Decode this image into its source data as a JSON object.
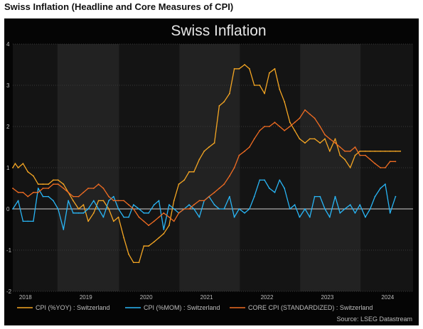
{
  "page": {
    "heading": "Swiss Inflation (Headline and Core Measures of CPI)"
  },
  "chart_data": {
    "type": "line",
    "title": "Swiss Inflation",
    "source": "Source: LSEG Datastream",
    "xlim": [
      2017.79,
      2024.42
    ],
    "ylim": [
      -2,
      4
    ],
    "yticks": [
      -2,
      -1,
      0,
      1,
      2,
      3,
      4
    ],
    "xtick_labels": [
      {
        "label": "2018",
        "x": 2018.0
      },
      {
        "label": "2019",
        "x": 2019.0
      },
      {
        "label": "2020",
        "x": 2020.0
      },
      {
        "label": "2021",
        "x": 2021.0
      },
      {
        "label": "2022",
        "x": 2022.0
      },
      {
        "label": "2023",
        "x": 2023.0
      },
      {
        "label": "2024",
        "x": 2024.0
      }
    ],
    "shaded_bands": [
      [
        2017.79,
        2018.53
      ],
      [
        2019.55,
        2020.55
      ],
      [
        2021.55,
        2022.55
      ],
      [
        2023.55,
        2024.42
      ]
    ],
    "zero_line": 0,
    "colors": {
      "cpi_yoy": "#f5a623",
      "cpi_mom": "#29b6f6",
      "core_cpi": "#ef6c22",
      "panel_bg": "#050505",
      "band_light": "#222222",
      "band_dark": "#141414",
      "grid": "#3a3a3a",
      "text": "#bdbdbd",
      "title": "#e6e6e6"
    },
    "series": [
      {
        "key": "cpi_yoy",
        "name": "CPI (%YOY) : Switzerland",
        "color": "#f5a623",
        "x": [
          2017.79,
          2017.83,
          2017.88,
          2017.96,
          2018.04,
          2018.13,
          2018.21,
          2018.29,
          2018.38,
          2018.46,
          2018.54,
          2018.63,
          2018.71,
          2018.79,
          2018.88,
          2018.96,
          2019.04,
          2019.13,
          2019.21,
          2019.29,
          2019.38,
          2019.46,
          2019.54,
          2019.63,
          2019.71,
          2019.79,
          2019.88,
          2019.96,
          2020.04,
          2020.13,
          2020.21,
          2020.29,
          2020.38,
          2020.46,
          2020.54,
          2020.63,
          2020.71,
          2020.79,
          2020.88,
          2020.96,
          2021.04,
          2021.13,
          2021.21,
          2021.29,
          2021.38,
          2021.46,
          2021.54,
          2021.63,
          2021.71,
          2021.79,
          2021.88,
          2021.96,
          2022.04,
          2022.13,
          2022.21,
          2022.29,
          2022.38,
          2022.46,
          2022.54,
          2022.63,
          2022.71,
          2022.79,
          2022.88,
          2022.96,
          2023.04,
          2023.13,
          2023.21,
          2023.29,
          2023.38,
          2023.46,
          2023.54,
          2023.63,
          2023.71,
          2023.79,
          2023.88,
          2023.96,
          2024.04,
          2024.13,
          2024.21
        ],
        "values": [
          1.0,
          1.1,
          1.0,
          1.1,
          0.9,
          0.8,
          0.6,
          0.6,
          0.6,
          0.7,
          0.7,
          0.6,
          0.4,
          0.2,
          0.0,
          0.1,
          -0.3,
          -0.1,
          0.2,
          0.2,
          0.0,
          -0.3,
          -0.2,
          -0.7,
          -1.1,
          -1.3,
          -1.3,
          -0.9,
          -0.9,
          -0.8,
          -0.7,
          -0.6,
          -0.4,
          0.2,
          0.6,
          0.7,
          0.9,
          0.9,
          1.2,
          1.4,
          1.5,
          1.6,
          2.5,
          2.6,
          2.8,
          3.4,
          3.4,
          3.5,
          3.4,
          3.0,
          3.0,
          2.8,
          3.3,
          3.4,
          2.9,
          2.6,
          2.1,
          1.9,
          1.7,
          1.6,
          1.7,
          1.7,
          1.6,
          1.7,
          1.4,
          1.7,
          1.3,
          1.2,
          1.0,
          1.3,
          1.4,
          1.4,
          1.4,
          1.4,
          1.4,
          1.4,
          1.4,
          1.4,
          1.4
        ]
      },
      {
        "key": "cpi_mom",
        "name": "CPI (%MOM) : Switzerland",
        "color": "#29b6f6",
        "x": [
          2017.79,
          2017.88,
          2017.96,
          2018.04,
          2018.13,
          2018.21,
          2018.29,
          2018.38,
          2018.46,
          2018.54,
          2018.63,
          2018.71,
          2018.79,
          2018.88,
          2018.96,
          2019.04,
          2019.13,
          2019.21,
          2019.29,
          2019.38,
          2019.46,
          2019.54,
          2019.63,
          2019.71,
          2019.79,
          2019.88,
          2019.96,
          2020.04,
          2020.13,
          2020.21,
          2020.29,
          2020.38,
          2020.46,
          2020.54,
          2020.63,
          2020.71,
          2020.79,
          2020.88,
          2020.96,
          2021.04,
          2021.13,
          2021.21,
          2021.29,
          2021.38,
          2021.46,
          2021.54,
          2021.63,
          2021.71,
          2021.79,
          2021.88,
          2021.96,
          2022.04,
          2022.13,
          2022.21,
          2022.29,
          2022.38,
          2022.46,
          2022.54,
          2022.63,
          2022.71,
          2022.79,
          2022.88,
          2022.96,
          2023.04,
          2023.13,
          2023.21,
          2023.29,
          2023.38,
          2023.46,
          2023.54,
          2023.63,
          2023.71,
          2023.79,
          2023.88,
          2023.96,
          2024.04,
          2024.13
        ],
        "values": [
          0.0,
          0.2,
          -0.3,
          -0.3,
          -0.3,
          0.5,
          0.3,
          0.3,
          0.2,
          0.0,
          -0.5,
          0.2,
          -0.1,
          -0.1,
          -0.1,
          0.0,
          0.2,
          0.0,
          -0.2,
          0.2,
          0.3,
          0.0,
          -0.2,
          -0.2,
          0.1,
          0.0,
          -0.1,
          -0.1,
          0.1,
          0.2,
          -0.5,
          0.1,
          0.0,
          -0.1,
          0.0,
          0.1,
          0.0,
          -0.2,
          0.2,
          0.3,
          0.1,
          0.0,
          0.0,
          0.3,
          -0.2,
          0.0,
          -0.1,
          0.0,
          0.3,
          0.7,
          0.7,
          0.5,
          0.4,
          0.7,
          0.5,
          0.0,
          0.1,
          -0.2,
          0.0,
          -0.2,
          0.3,
          0.3,
          0.0,
          -0.2,
          0.3,
          -0.1,
          0.0,
          0.1,
          -0.1,
          0.1,
          -0.2,
          0.0,
          0.3,
          0.5,
          0.6,
          -0.1,
          0.3
        ]
      },
      {
        "key": "core_cpi",
        "name": "CORE CPI (STANDARDIZED) : Switzerland",
        "color": "#ef6c22",
        "x": [
          2017.79,
          2017.88,
          2017.96,
          2018.04,
          2018.13,
          2018.21,
          2018.29,
          2018.38,
          2018.46,
          2018.54,
          2018.63,
          2018.71,
          2018.79,
          2018.88,
          2018.96,
          2019.04,
          2019.13,
          2019.21,
          2019.29,
          2019.38,
          2019.46,
          2019.54,
          2019.63,
          2019.71,
          2019.79,
          2019.88,
          2019.96,
          2020.04,
          2020.13,
          2020.21,
          2020.29,
          2020.38,
          2020.46,
          2020.54,
          2020.63,
          2020.71,
          2020.79,
          2020.88,
          2020.96,
          2021.04,
          2021.13,
          2021.21,
          2021.29,
          2021.38,
          2021.46,
          2021.54,
          2021.63,
          2021.71,
          2021.79,
          2021.88,
          2021.96,
          2022.04,
          2022.13,
          2022.21,
          2022.29,
          2022.38,
          2022.46,
          2022.54,
          2022.63,
          2022.71,
          2022.79,
          2022.88,
          2022.96,
          2023.04,
          2023.13,
          2023.21,
          2023.29,
          2023.38,
          2023.46,
          2023.54,
          2023.63,
          2023.71,
          2023.79,
          2023.88,
          2023.96,
          2024.04,
          2024.13
        ],
        "values": [
          0.5,
          0.4,
          0.4,
          0.3,
          0.4,
          0.4,
          0.5,
          0.5,
          0.6,
          0.6,
          0.5,
          0.4,
          0.3,
          0.3,
          0.4,
          0.5,
          0.5,
          0.6,
          0.5,
          0.3,
          0.2,
          0.2,
          0.2,
          0.1,
          0.0,
          -0.2,
          -0.3,
          -0.4,
          -0.3,
          -0.2,
          -0.1,
          -0.2,
          -0.3,
          -0.1,
          0.0,
          0.0,
          0.1,
          0.2,
          0.2,
          0.3,
          0.4,
          0.5,
          0.6,
          0.8,
          1.0,
          1.3,
          1.4,
          1.5,
          1.7,
          1.9,
          2.0,
          2.0,
          2.1,
          2.0,
          1.9,
          2.0,
          2.1,
          2.2,
          2.4,
          2.3,
          2.2,
          2.0,
          1.8,
          1.7,
          1.6,
          1.5,
          1.4,
          1.4,
          1.5,
          1.3,
          1.3,
          1.2,
          1.1,
          1.0,
          1.0,
          1.15,
          1.15
        ]
      }
    ]
  }
}
